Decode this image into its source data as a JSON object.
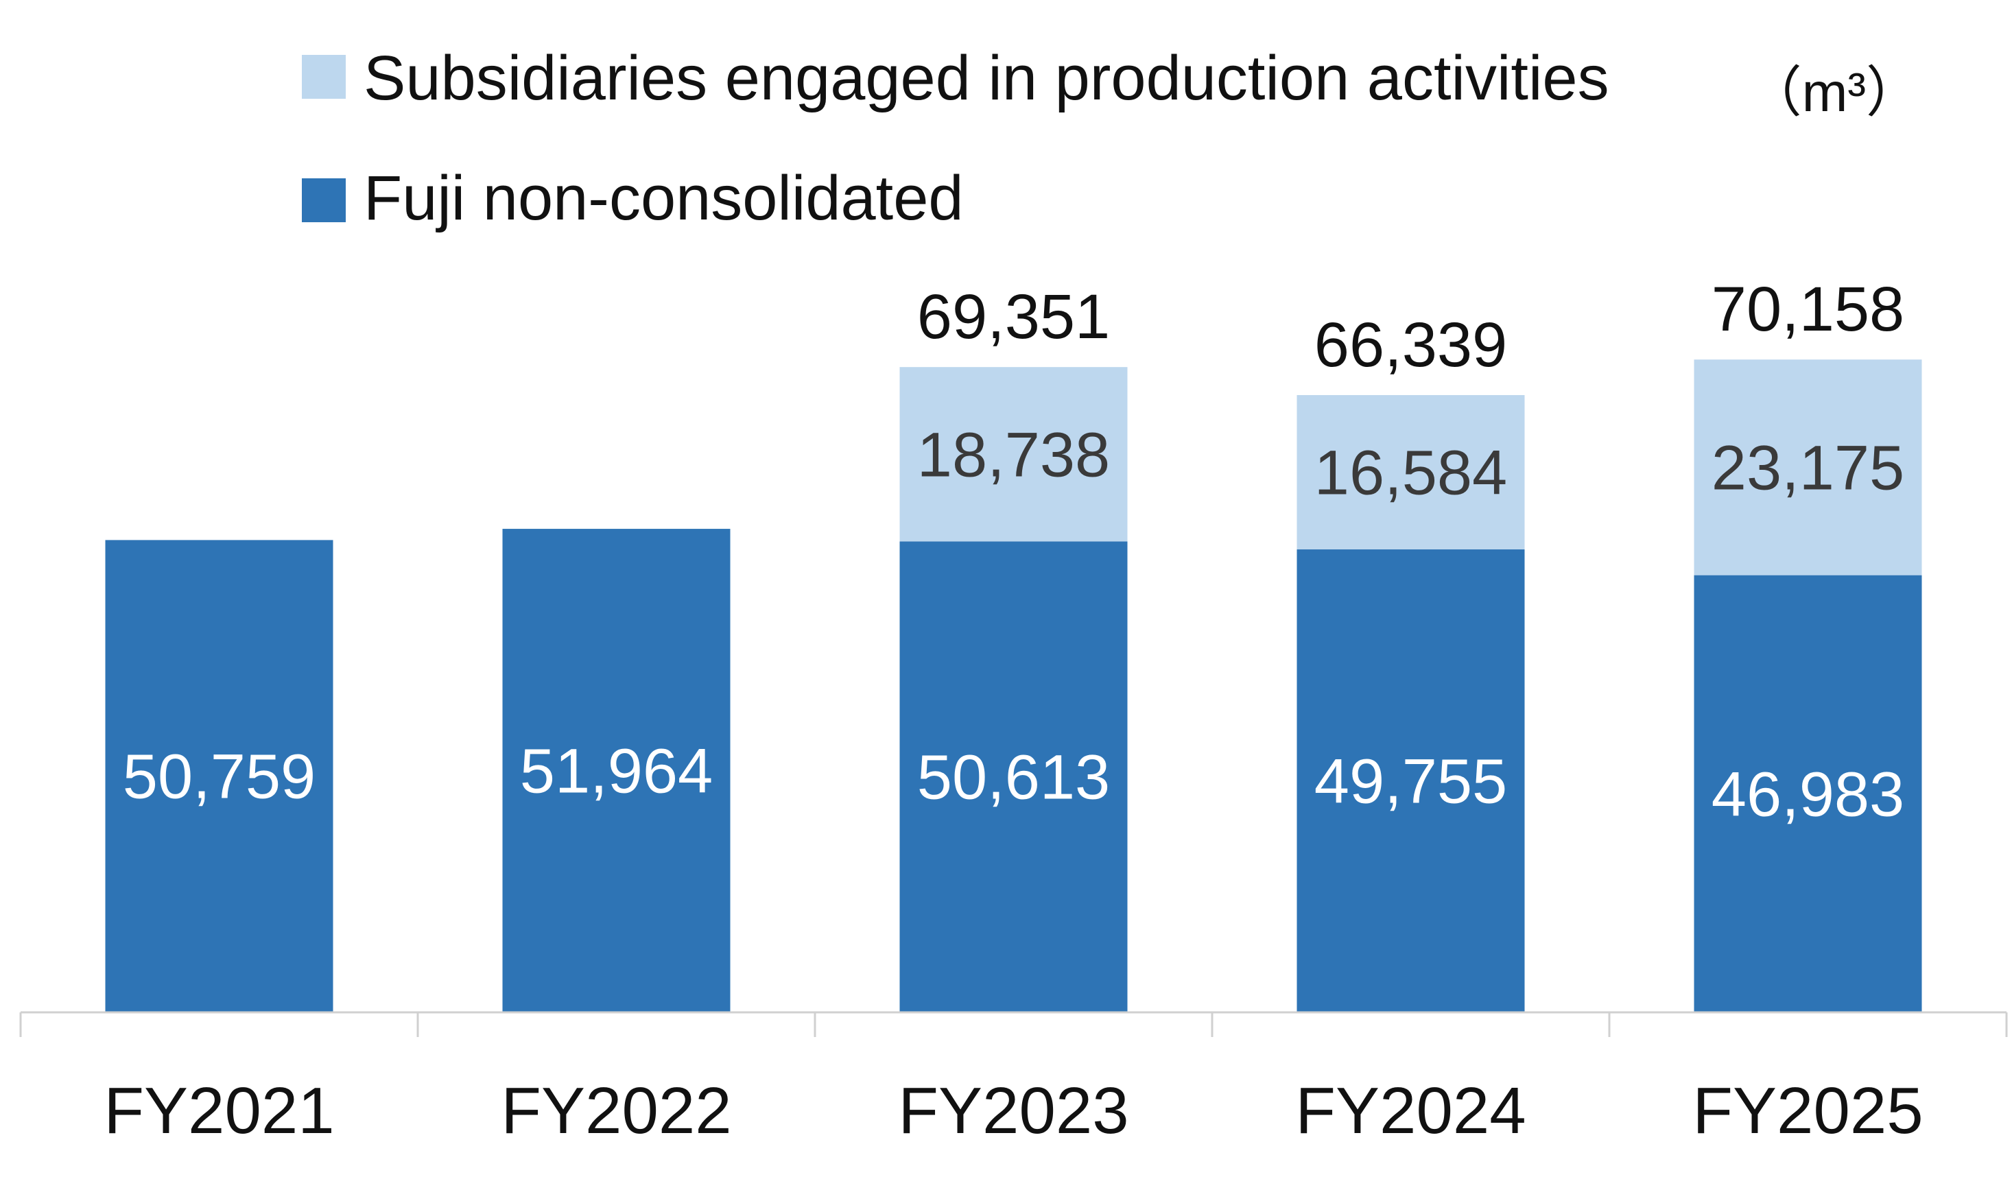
{
  "unit_label": "（m³）",
  "colors": {
    "fuji": "#2E74B5",
    "subsidiaries": "#BDD7EE",
    "axis": "#d0d0d0",
    "text": "#111111"
  },
  "chart_data": {
    "type": "bar",
    "stacked": true,
    "title": "",
    "xlabel": "",
    "ylabel": "",
    "unit": "m³",
    "ylim": [
      0,
      75000
    ],
    "grid": false,
    "legend_position": "top",
    "categories": [
      "FY2021",
      "FY2022",
      "FY2023",
      "FY2024",
      "FY2025"
    ],
    "series": [
      {
        "name": "Fuji non-consolidated",
        "color": "#2E74B5",
        "values": [
          50759,
          51964,
          50613,
          49755,
          46983
        ],
        "labels": [
          "50,759",
          "51,964",
          "50,613",
          "49,755",
          "46,983"
        ]
      },
      {
        "name": "Subsidiaries engaged in production activities",
        "color": "#BDD7EE",
        "values": [
          null,
          null,
          18738,
          16584,
          23175
        ],
        "labels": [
          "",
          "",
          "18,738",
          "16,584",
          "23,175"
        ]
      }
    ],
    "totals": [
      null,
      null,
      69351,
      66339,
      70158
    ],
    "total_labels": [
      "",
      "",
      "69,351",
      "66,339",
      "70,158"
    ]
  }
}
